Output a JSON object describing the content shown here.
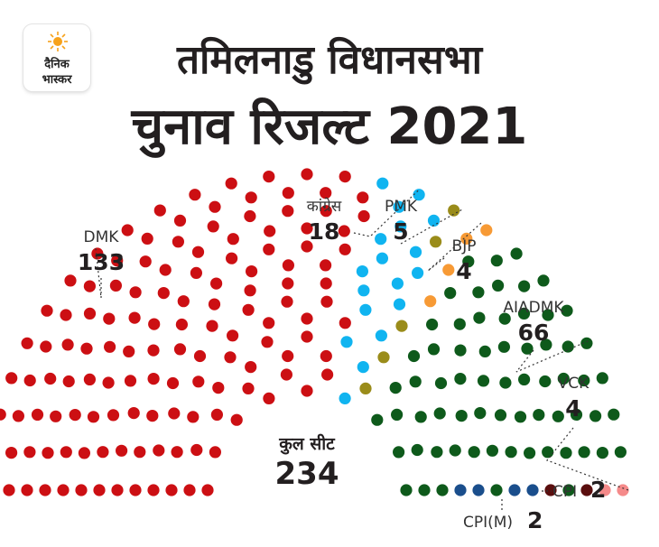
{
  "logo": {
    "line1": "दैनिक",
    "line2": "भास्कर"
  },
  "title_line1": "तमिलनाडु विधानसभा",
  "title_line2": "चुनाव रिजल्ट 2021",
  "chart_data": {
    "type": "parliament",
    "total_label": "कुल सीट",
    "total": 234,
    "series": [
      {
        "name": "DMK",
        "value": 133,
        "color": "#cc0f13"
      },
      {
        "name": "कांग्रेस",
        "value": 18,
        "color": "#10b4f0"
      },
      {
        "name": "PMK",
        "value": 5,
        "color": "#9a8c1a"
      },
      {
        "name": "BJP",
        "value": 4,
        "color": "#f79a35"
      },
      {
        "name": "AIADMK",
        "value": 66,
        "color": "#0e5a1b"
      },
      {
        "name": "VCK",
        "value": 4,
        "color": "#1a4e8c"
      },
      {
        "name": "CPI(M)",
        "value": 2,
        "color": "#5a0e0e"
      },
      {
        "name": "CPI",
        "value": 2,
        "color": "#f58a8a"
      }
    ]
  }
}
